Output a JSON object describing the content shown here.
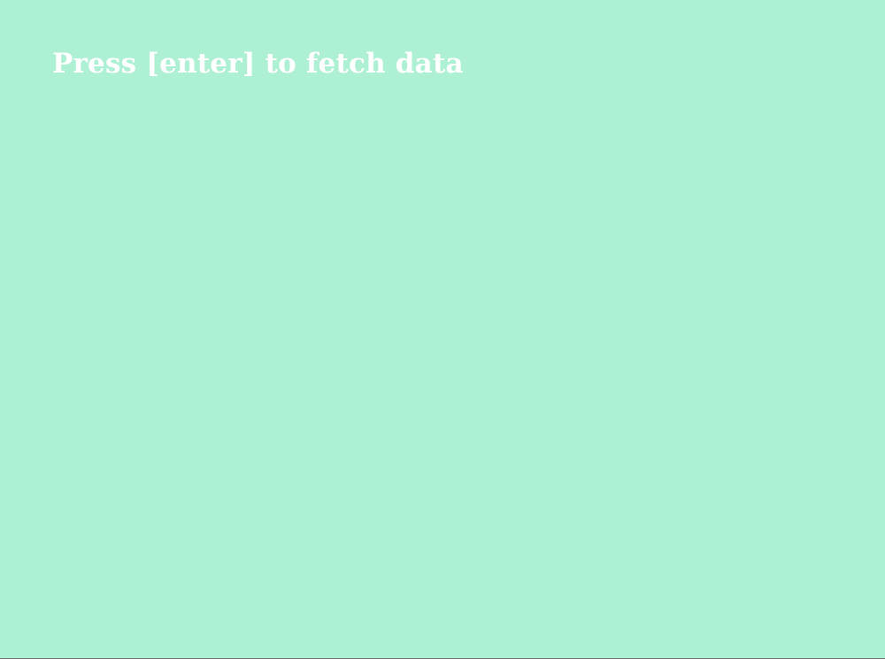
{
  "screen": {
    "prompt_text": "Press [enter] to fetch data",
    "background_color": "#adf0d3",
    "text_color": "#ffffff"
  }
}
